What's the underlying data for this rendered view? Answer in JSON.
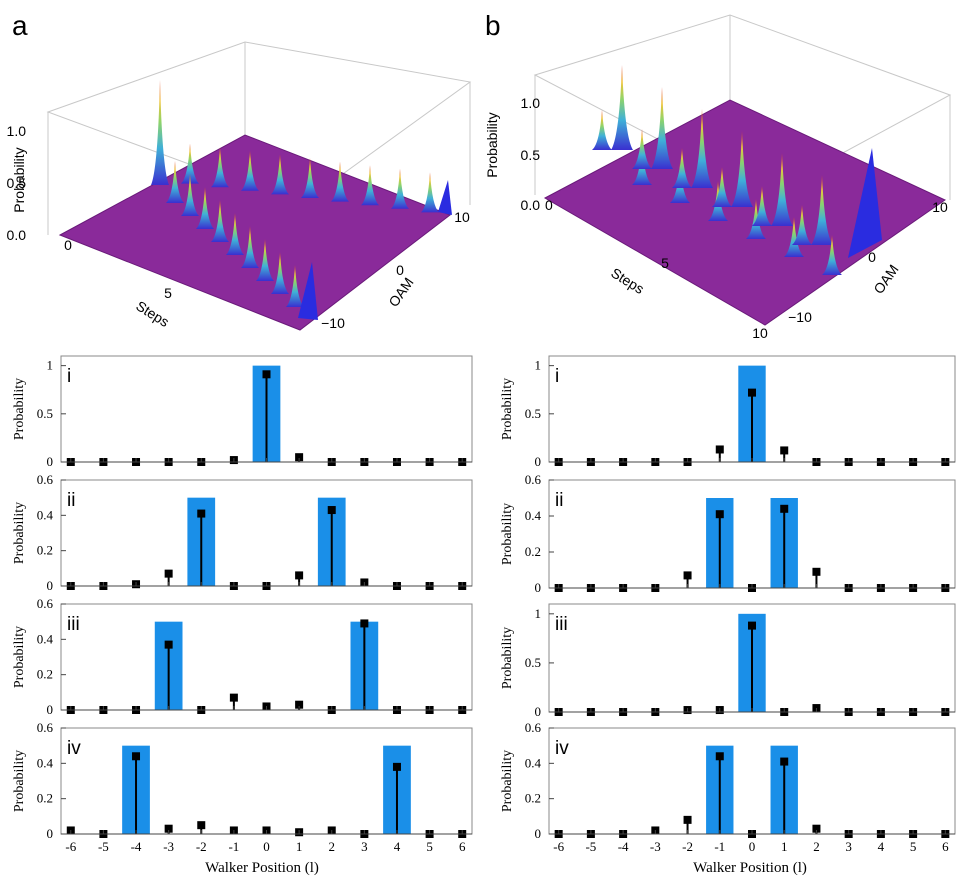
{
  "panel_labels": {
    "a": "a",
    "b": "b"
  },
  "colors": {
    "ideal_bar": "#1a8fe8",
    "measured": "#000000",
    "surface_floor": "#8a2a9a",
    "surface_peak": "#2a6cf0"
  },
  "surface_a": {
    "type": "surface",
    "zlabel": "Probability",
    "xlabel": "Steps",
    "ylabel": "OAM",
    "z_ticks": [
      "0.0",
      "0.5",
      "1.0"
    ],
    "x_ticks": [
      "0",
      "5"
    ],
    "y_ticks": [
      "10",
      "0",
      "−10"
    ]
  },
  "surface_b": {
    "type": "surface",
    "zlabel": "Probability",
    "xlabel": "Steps",
    "ylabel": "OAM",
    "z_ticks": [
      "0.0",
      "0.5",
      "1.0"
    ],
    "x_ticks": [
      "0",
      "5",
      "10"
    ],
    "y_ticks": [
      "10",
      "0",
      "−10"
    ]
  },
  "x_axis_title": "Walker Position (l)",
  "y_axis_title": "Probability",
  "chart_data": [
    {
      "type": "bar",
      "panel": "a",
      "label": "i",
      "x": [
        -6,
        -5,
        -4,
        -3,
        -2,
        -1,
        0,
        1,
        2,
        3,
        4,
        5,
        6
      ],
      "ideal": [
        0,
        0,
        0,
        0,
        0,
        0,
        1,
        0,
        0,
        0,
        0,
        0,
        0
      ],
      "measured": [
        0,
        0,
        0,
        0,
        0,
        0.02,
        0.91,
        0.05,
        0,
        0,
        0,
        0,
        0
      ],
      "ylim": [
        0,
        1.1
      ],
      "yticks": [
        "0",
        "0.5",
        "1"
      ],
      "ytick_values": [
        0,
        0.5,
        1
      ]
    },
    {
      "type": "bar",
      "panel": "a",
      "label": "ii",
      "x": [
        -6,
        -5,
        -4,
        -3,
        -2,
        -1,
        0,
        1,
        2,
        3,
        4,
        5,
        6
      ],
      "ideal": [
        0,
        0,
        0,
        0,
        0.5,
        0,
        0,
        0,
        0.5,
        0,
        0,
        0,
        0
      ],
      "measured": [
        0,
        0,
        0.01,
        0.07,
        0.41,
        0,
        0,
        0.06,
        0.43,
        0.02,
        0,
        0,
        0
      ],
      "ylim": [
        0,
        0.6
      ],
      "yticks": [
        "0",
        "0.2",
        "0.4",
        "0.6"
      ],
      "ytick_values": [
        0,
        0.2,
        0.4,
        0.6
      ]
    },
    {
      "type": "bar",
      "panel": "a",
      "label": "iii",
      "x": [
        -6,
        -5,
        -4,
        -3,
        -2,
        -1,
        0,
        1,
        2,
        3,
        4,
        5,
        6
      ],
      "ideal": [
        0,
        0,
        0,
        0.5,
        0,
        0,
        0,
        0,
        0,
        0.5,
        0,
        0,
        0
      ],
      "measured": [
        0,
        0,
        0,
        0.37,
        0,
        0.07,
        0.02,
        0.03,
        0,
        0.49,
        0,
        0,
        0
      ],
      "ylim": [
        0,
        0.6
      ],
      "yticks": [
        "0",
        "0.2",
        "0.4",
        "0.6"
      ],
      "ytick_values": [
        0,
        0.2,
        0.4,
        0.6
      ]
    },
    {
      "type": "bar",
      "panel": "a",
      "label": "iv",
      "x": [
        -6,
        -5,
        -4,
        -3,
        -2,
        -1,
        0,
        1,
        2,
        3,
        4,
        5,
        6
      ],
      "ideal": [
        0,
        0,
        0.5,
        0,
        0,
        0,
        0,
        0,
        0,
        0,
        0.5,
        0,
        0
      ],
      "measured": [
        0.02,
        0,
        0.44,
        0.03,
        0.05,
        0.02,
        0.02,
        0.01,
        0.02,
        0,
        0.38,
        0,
        0
      ],
      "ylim": [
        0,
        0.6
      ],
      "yticks": [
        "0",
        "0.2",
        "0.4",
        "0.6"
      ],
      "ytick_values": [
        0,
        0.2,
        0.4,
        0.6
      ]
    },
    {
      "type": "bar",
      "panel": "b",
      "label": "i",
      "x": [
        -6,
        -5,
        -4,
        -3,
        -2,
        -1,
        0,
        1,
        2,
        3,
        4,
        5,
        6
      ],
      "ideal": [
        0,
        0,
        0,
        0,
        0,
        0,
        1,
        0,
        0,
        0,
        0,
        0,
        0
      ],
      "measured": [
        0,
        0,
        0,
        0,
        0,
        0.13,
        0.72,
        0.12,
        0,
        0,
        0,
        0,
        0
      ],
      "ylim": [
        0,
        1.1
      ],
      "yticks": [
        "0",
        "0.5",
        "1"
      ],
      "ytick_values": [
        0,
        0.5,
        1
      ]
    },
    {
      "type": "bar",
      "panel": "b",
      "label": "ii",
      "x": [
        -6,
        -5,
        -4,
        -3,
        -2,
        -1,
        0,
        1,
        2,
        3,
        4,
        5,
        6
      ],
      "ideal": [
        0,
        0,
        0,
        0,
        0,
        0.5,
        0,
        0.5,
        0,
        0,
        0,
        0,
        0
      ],
      "measured": [
        0,
        0,
        0,
        0,
        0.07,
        0.41,
        0,
        0.44,
        0.09,
        0,
        0,
        0,
        0
      ],
      "ylim": [
        0,
        0.6
      ],
      "yticks": [
        "0",
        "0.2",
        "0.4",
        "0.6"
      ],
      "ytick_values": [
        0,
        0.2,
        0.4,
        0.6
      ]
    },
    {
      "type": "bar",
      "panel": "b",
      "label": "iii",
      "x": [
        -6,
        -5,
        -4,
        -3,
        -2,
        -1,
        0,
        1,
        2,
        3,
        4,
        5,
        6
      ],
      "ideal": [
        0,
        0,
        0,
        0,
        0,
        0,
        1,
        0,
        0,
        0,
        0,
        0,
        0
      ],
      "measured": [
        0,
        0,
        0,
        0,
        0.02,
        0.02,
        0.88,
        0,
        0.04,
        0,
        0,
        0,
        0
      ],
      "ylim": [
        0,
        1.1
      ],
      "yticks": [
        "0",
        "0.5",
        "1"
      ],
      "ytick_values": [
        0,
        0.5,
        1
      ]
    },
    {
      "type": "bar",
      "panel": "b",
      "label": "iv",
      "x": [
        -6,
        -5,
        -4,
        -3,
        -2,
        -1,
        0,
        1,
        2,
        3,
        4,
        5,
        6
      ],
      "ideal": [
        0,
        0,
        0,
        0,
        0,
        0.5,
        0,
        0.5,
        0,
        0,
        0,
        0,
        0
      ],
      "measured": [
        0,
        0,
        0,
        0.02,
        0.08,
        0.44,
        0,
        0.41,
        0.03,
        0,
        0,
        0,
        0
      ],
      "ylim": [
        0,
        0.6
      ],
      "yticks": [
        "0",
        "0.2",
        "0.4",
        "0.6"
      ],
      "ytick_values": [
        0,
        0.2,
        0.4,
        0.6
      ]
    }
  ]
}
